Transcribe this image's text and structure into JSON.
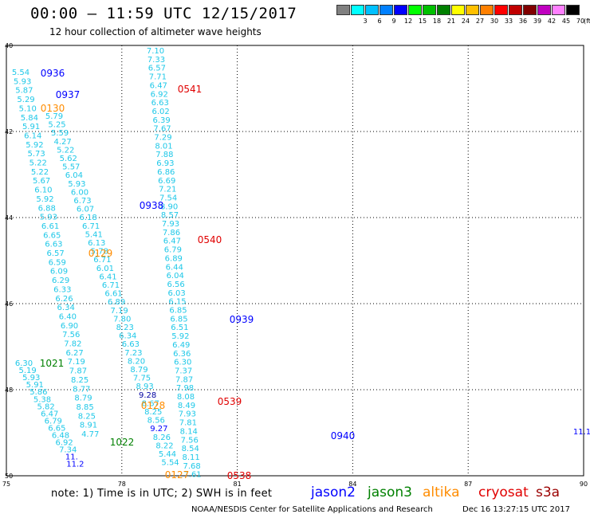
{
  "header": {
    "title": "00:00 – 11:59 UTC 12/15/2017",
    "subtitle": "12 hour collection of altimeter wave heights"
  },
  "color_scale": {
    "unit": "(ft)",
    "swatches": [
      {
        "color": "#808080",
        "label": ""
      },
      {
        "color": "#00ffff",
        "label": "3"
      },
      {
        "color": "#00c0ff",
        "label": "6"
      },
      {
        "color": "#0080ff",
        "label": "9"
      },
      {
        "color": "#0000ff",
        "label": "12"
      },
      {
        "color": "#00ff00",
        "label": "15"
      },
      {
        "color": "#00c000",
        "label": "18"
      },
      {
        "color": "#008000",
        "label": "21"
      },
      {
        "color": "#ffff00",
        "label": "24"
      },
      {
        "color": "#ffc000",
        "label": "27"
      },
      {
        "color": "#ff8000",
        "label": "30"
      },
      {
        "color": "#ff0000",
        "label": "33"
      },
      {
        "color": "#c00000",
        "label": "36"
      },
      {
        "color": "#800000",
        "label": "39"
      },
      {
        "color": "#c000c0",
        "label": "42"
      },
      {
        "color": "#ff80ff",
        "label": "45"
      },
      {
        "color": "#000000",
        "label": "70"
      }
    ]
  },
  "map": {
    "lat_labels": [
      "40",
      "42",
      "44",
      "46",
      "48",
      "50"
    ],
    "lon_labels": [
      "75",
      "78",
      "81",
      "84",
      "87",
      "90"
    ],
    "colors": {
      "cyan": "#1fc8e8",
      "blue": "#0000ff",
      "green": "#008000",
      "orange": "#ff8c00",
      "red": "#e00000",
      "purple": "#0000a0",
      "lightgreen": "#40d040"
    },
    "readings": [
      {
        "t": "7.10",
        "c": "cyan"
      },
      {
        "t": "7.33",
        "c": "cyan"
      },
      {
        "t": "6.57",
        "c": "cyan"
      },
      {
        "t": "7.71",
        "c": "cyan"
      },
      {
        "t": "6.47",
        "c": "cyan"
      },
      {
        "t": "6.92",
        "c": "cyan"
      },
      {
        "t": "6.63",
        "c": "cyan"
      },
      {
        "t": "6.02",
        "c": "cyan"
      },
      {
        "t": "6.39",
        "c": "cyan"
      },
      {
        "t": "7.67",
        "c": "cyan"
      },
      {
        "t": "7.29",
        "c": "cyan"
      },
      {
        "t": "8.01",
        "c": "cyan"
      },
      {
        "t": "7.88",
        "c": "cyan"
      },
      {
        "t": "6.93",
        "c": "cyan"
      },
      {
        "t": "6.86",
        "c": "cyan"
      },
      {
        "t": "6.69",
        "c": "cyan"
      },
      {
        "t": "7.21",
        "c": "cyan"
      },
      {
        "t": "7.54",
        "c": "cyan"
      },
      {
        "t": "8.90",
        "c": "cyan"
      },
      {
        "t": "8.57",
        "c": "cyan"
      },
      {
        "t": "7.93",
        "c": "cyan"
      },
      {
        "t": "7.86",
        "c": "cyan"
      },
      {
        "t": "6.47",
        "c": "cyan"
      },
      {
        "t": "6.79",
        "c": "cyan"
      },
      {
        "t": "6.89",
        "c": "cyan"
      },
      {
        "t": "6.44",
        "c": "cyan"
      },
      {
        "t": "6.04",
        "c": "cyan"
      },
      {
        "t": "6.56",
        "c": "cyan"
      },
      {
        "t": "6.03",
        "c": "cyan"
      },
      {
        "t": "6.15",
        "c": "cyan"
      },
      {
        "t": "6.85",
        "c": "cyan"
      },
      {
        "t": "6.85",
        "c": "cyan"
      },
      {
        "t": "6.51",
        "c": "cyan"
      },
      {
        "t": "5.92",
        "c": "cyan"
      },
      {
        "t": "6.49",
        "c": "cyan"
      },
      {
        "t": "6.36",
        "c": "cyan"
      },
      {
        "t": "6.30",
        "c": "cyan"
      },
      {
        "t": "7.37",
        "c": "cyan"
      },
      {
        "t": "7.87",
        "c": "cyan"
      },
      {
        "t": "7.98",
        "c": "cyan"
      },
      {
        "t": "8.08",
        "c": "cyan"
      },
      {
        "t": "8.49",
        "c": "cyan"
      },
      {
        "t": "7.93",
        "c": "cyan"
      },
      {
        "t": "7.81",
        "c": "cyan"
      },
      {
        "t": "8.14",
        "c": "cyan"
      },
      {
        "t": "7.56",
        "c": "cyan"
      },
      {
        "t": "8.54",
        "c": "cyan"
      },
      {
        "t": "8.11",
        "c": "cyan"
      },
      {
        "t": "7.68",
        "c": "cyan"
      },
      {
        "t": "7.61",
        "c": "cyan"
      },
      {
        "t": "5.54",
        "c": "cyan"
      },
      {
        "t": "5.93",
        "c": "cyan"
      },
      {
        "t": "5.87",
        "c": "cyan"
      },
      {
        "t": "5.29",
        "c": "cyan"
      },
      {
        "t": "5.10",
        "c": "cyan"
      },
      {
        "t": "5.84",
        "c": "cyan"
      },
      {
        "t": "5.91",
        "c": "cyan"
      },
      {
        "t": "6.14",
        "c": "cyan"
      },
      {
        "t": "5.92",
        "c": "cyan"
      },
      {
        "t": "5.73",
        "c": "cyan"
      },
      {
        "t": "5.22",
        "c": "cyan"
      },
      {
        "t": "5.22",
        "c": "cyan"
      },
      {
        "t": "5.67",
        "c": "cyan"
      },
      {
        "t": "6.10",
        "c": "cyan"
      },
      {
        "t": "5.92",
        "c": "cyan"
      },
      {
        "t": "6.88",
        "c": "cyan"
      },
      {
        "t": "5.93",
        "c": "cyan"
      },
      {
        "t": "6.61",
        "c": "cyan"
      },
      {
        "t": "6.65",
        "c": "cyan"
      },
      {
        "t": "6.63",
        "c": "cyan"
      },
      {
        "t": "6.57",
        "c": "cyan"
      },
      {
        "t": "6.59",
        "c": "cyan"
      },
      {
        "t": "6.09",
        "c": "cyan"
      },
      {
        "t": "6.29",
        "c": "cyan"
      },
      {
        "t": "6.33",
        "c": "cyan"
      },
      {
        "t": "6.26",
        "c": "cyan"
      },
      {
        "t": "6.34",
        "c": "cyan"
      },
      {
        "t": "6.40",
        "c": "cyan"
      },
      {
        "t": "6.90",
        "c": "cyan"
      },
      {
        "t": "7.56",
        "c": "cyan"
      },
      {
        "t": "7.82",
        "c": "cyan"
      },
      {
        "t": "6.27",
        "c": "cyan"
      },
      {
        "t": "7.19",
        "c": "cyan"
      },
      {
        "t": "7.87",
        "c": "cyan"
      },
      {
        "t": "8.25",
        "c": "cyan"
      },
      {
        "t": "8.77",
        "c": "cyan"
      },
      {
        "t": "8.79",
        "c": "cyan"
      },
      {
        "t": "8.85",
        "c": "cyan"
      },
      {
        "t": "8.25",
        "c": "cyan"
      },
      {
        "t": "8.91",
        "c": "cyan"
      },
      {
        "t": "4.77",
        "c": "cyan"
      },
      {
        "t": "5.79",
        "c": "cyan"
      },
      {
        "t": "5.25",
        "c": "cyan"
      },
      {
        "t": "5.59",
        "c": "cyan"
      },
      {
        "t": "4.27",
        "c": "cyan"
      },
      {
        "t": "5.22",
        "c": "cyan"
      },
      {
        "t": "5.62",
        "c": "cyan"
      },
      {
        "t": "5.57",
        "c": "cyan"
      },
      {
        "t": "6.04",
        "c": "cyan"
      },
      {
        "t": "5.93",
        "c": "cyan"
      },
      {
        "t": "6.00",
        "c": "cyan"
      },
      {
        "t": "6.73",
        "c": "cyan"
      },
      {
        "t": "6.07",
        "c": "cyan"
      },
      {
        "t": "6.18",
        "c": "cyan"
      },
      {
        "t": "6.71",
        "c": "cyan"
      },
      {
        "t": "5.41",
        "c": "cyan"
      },
      {
        "t": "6.13",
        "c": "cyan"
      },
      {
        "t": "5.78",
        "c": "cyan"
      },
      {
        "t": "6.71",
        "c": "cyan"
      },
      {
        "t": "6.01",
        "c": "cyan"
      },
      {
        "t": "6.41",
        "c": "cyan"
      },
      {
        "t": "6.71",
        "c": "cyan"
      },
      {
        "t": "6.61",
        "c": "cyan"
      },
      {
        "t": "6.89",
        "c": "cyan"
      },
      {
        "t": "7.19",
        "c": "cyan"
      },
      {
        "t": "7.80",
        "c": "cyan"
      },
      {
        "t": "8.23",
        "c": "cyan"
      },
      {
        "t": "6.34",
        "c": "cyan"
      },
      {
        "t": "6.63",
        "c": "cyan"
      },
      {
        "t": "7.23",
        "c": "cyan"
      },
      {
        "t": "8.20",
        "c": "cyan"
      },
      {
        "t": "8.79",
        "c": "cyan"
      },
      {
        "t": "7.75",
        "c": "cyan"
      },
      {
        "t": "8.93",
        "c": "cyan"
      },
      {
        "t": "9.28",
        "c": "purple"
      },
      {
        "t": "8.67",
        "c": "cyan"
      },
      {
        "t": "8.25",
        "c": "cyan"
      },
      {
        "t": "8.56",
        "c": "cyan"
      },
      {
        "t": "9.27",
        "c": "blue"
      },
      {
        "t": "8.26",
        "c": "cyan"
      },
      {
        "t": "8.22",
        "c": "cyan"
      },
      {
        "t": "5.44",
        "c": "cyan"
      },
      {
        "t": "5.54",
        "c": "cyan"
      },
      {
        "t": "6.30",
        "c": "cyan"
      },
      {
        "t": "5.19",
        "c": "cyan"
      },
      {
        "t": "5.93",
        "c": "cyan"
      },
      {
        "t": "5.91",
        "c": "cyan"
      },
      {
        "t": "5.86",
        "c": "cyan"
      },
      {
        "t": "5.38",
        "c": "cyan"
      },
      {
        "t": "5.82",
        "c": "cyan"
      },
      {
        "t": "6.47",
        "c": "cyan"
      },
      {
        "t": "6.79",
        "c": "cyan"
      },
      {
        "t": "6.65",
        "c": "cyan"
      },
      {
        "t": "6.48",
        "c": "cyan"
      },
      {
        "t": "6.92",
        "c": "cyan"
      },
      {
        "t": "7.34",
        "c": "cyan"
      },
      {
        "t": "11.",
        "c": "blue"
      },
      {
        "t": "11.2",
        "c": "blue"
      },
      {
        "t": "11.1",
        "c": "blue"
      }
    ],
    "time_labels": [
      {
        "t": "0936",
        "c": "blue"
      },
      {
        "t": "0937",
        "c": "blue"
      },
      {
        "t": "0130",
        "c": "orange"
      },
      {
        "t": "0541",
        "c": "red"
      },
      {
        "t": "0938",
        "c": "blue"
      },
      {
        "t": "0540",
        "c": "red"
      },
      {
        "t": "0129",
        "c": "orange"
      },
      {
        "t": "0939",
        "c": "blue"
      },
      {
        "t": "1021",
        "c": "green"
      },
      {
        "t": "0539",
        "c": "red"
      },
      {
        "t": "0128",
        "c": "orange"
      },
      {
        "t": "0940",
        "c": "blue"
      },
      {
        "t": "1022",
        "c": "green"
      },
      {
        "t": "0127",
        "c": "orange"
      },
      {
        "t": "0538",
        "c": "red"
      }
    ]
  },
  "footer": {
    "note": "note:  1) Time is in UTC;  2) SWH is in feet",
    "legend": [
      {
        "name": "jason2",
        "color": "#0000ff"
      },
      {
        "name": "jason3",
        "color": "#008000"
      },
      {
        "name": "altika",
        "color": "#ff8c00"
      },
      {
        "name": "cryosat",
        "color": "#e00000"
      },
      {
        "name": "s3a",
        "color": "#9b0000"
      }
    ],
    "credits": "NOAA/NESDIS Center for Satellite Applications and Research",
    "timestamp": "Dec 16 13:27:15 UTC 2017"
  }
}
